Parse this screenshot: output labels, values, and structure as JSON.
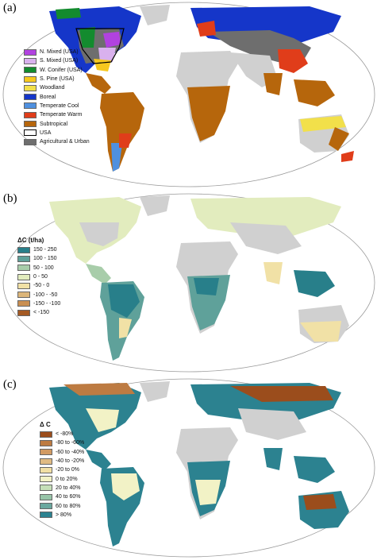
{
  "panels": [
    {
      "label": "(a)",
      "legend_title": "",
      "legend": [
        {
          "label": "N. Mixed (USA)",
          "color": "#b142e0"
        },
        {
          "label": "S. Mixed (USA)",
          "color": "#d9b1ee"
        },
        {
          "label": "W. Conifer (USA)",
          "color": "#138b2e"
        },
        {
          "label": "S. Pine (USA)",
          "color": "#f7c81e"
        },
        {
          "label": "Woodland",
          "color": "#f2e04a"
        },
        {
          "label": "Boreal",
          "color": "#1536c9"
        },
        {
          "label": "Temperate Cool",
          "color": "#4f90df"
        },
        {
          "label": "Temperate Warm",
          "color": "#e03d1a"
        },
        {
          "label": "Subtropical",
          "color": "#b6660c"
        },
        {
          "label": "USA",
          "color": "#ffffff"
        },
        {
          "label": "Agricultural & Urban",
          "color": "#6e6e6e"
        }
      ]
    },
    {
      "label": "(b)",
      "legend_title": "ΔC (t/ha)",
      "legend": [
        {
          "label": "150 - 250",
          "color": "#287f8a"
        },
        {
          "label": "100 - 150",
          "color": "#5fa19a"
        },
        {
          "label": "50 - 100",
          "color": "#a8cdaa"
        },
        {
          "label": "0 - 50",
          "color": "#e2ecbe"
        },
        {
          "label": "-50 - 0",
          "color": "#f1e1a6"
        },
        {
          "label": "-100 - -50",
          "color": "#dcb67a"
        },
        {
          "label": "-150 - -100",
          "color": "#c98f52"
        },
        {
          "label": "< -150",
          "color": "#a45a24"
        }
      ]
    },
    {
      "label": "(c)",
      "legend_title": "Δ C",
      "legend": [
        {
          "label": "< -80%",
          "color": "#9b4d1c"
        },
        {
          "label": "-80 to -60%",
          "color": "#bd7b42"
        },
        {
          "label": "-60 to -40%",
          "color": "#d19a62"
        },
        {
          "label": "-40 to -20%",
          "color": "#e0bb83"
        },
        {
          "label": "-20 to 0%",
          "color": "#f1dfa4"
        },
        {
          "label": "0 to 20%",
          "color": "#f2f2c6"
        },
        {
          "label": "20 to 40%",
          "color": "#c5dfb8"
        },
        {
          "label": "40 to 60%",
          "color": "#97c4a8"
        },
        {
          "label": "60 to 80%",
          "color": "#6aa89f"
        },
        {
          "label": "> 80%",
          "color": "#2c8290"
        }
      ]
    }
  ]
}
